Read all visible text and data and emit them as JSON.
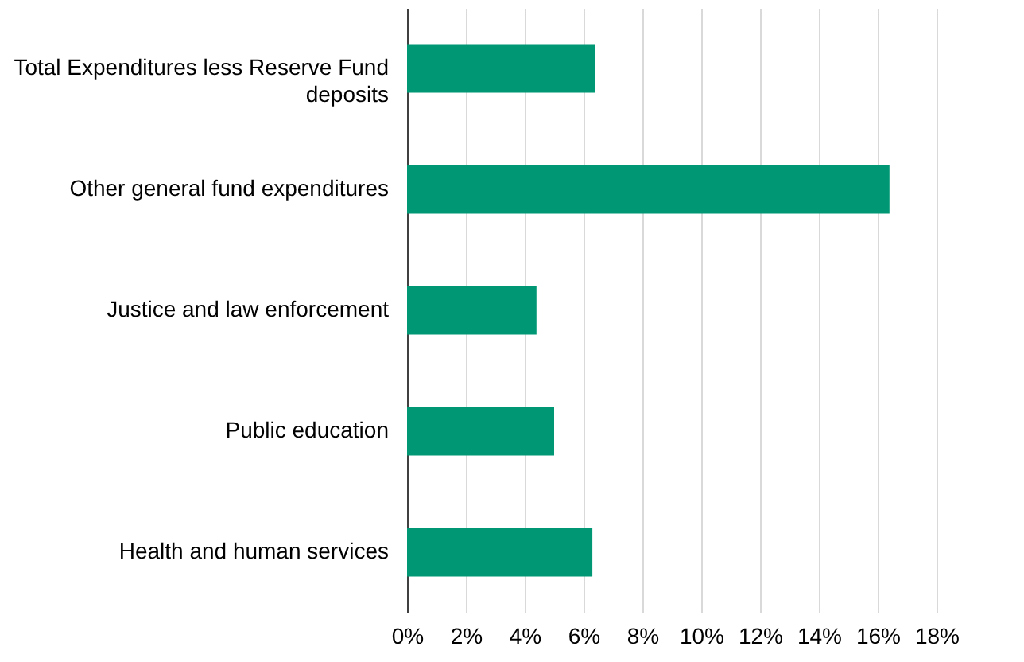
{
  "chart_data": {
    "type": "bar",
    "orientation": "horizontal",
    "categories": [
      "Total Expenditures less Reserve Fund deposits",
      "Other general fund expenditures",
      "Justice and law enforcement",
      "Public education",
      "Health and human services"
    ],
    "values": [
      6.4,
      16.4,
      4.4,
      5.0,
      6.3
    ],
    "color": "#009874",
    "xlim": [
      0,
      18
    ],
    "xticks": [
      {
        "value": 0,
        "label": "0%"
      },
      {
        "value": 2,
        "label": "2%"
      },
      {
        "value": 4,
        "label": "4%"
      },
      {
        "value": 6,
        "label": "6%"
      },
      {
        "value": 8,
        "label": "8%"
      },
      {
        "value": 10,
        "label": "10%"
      },
      {
        "value": 12,
        "label": "12%"
      },
      {
        "value": 14,
        "label": "14%"
      },
      {
        "value": 16,
        "label": "16%"
      },
      {
        "value": 18,
        "label": "18%"
      }
    ],
    "grid": "x"
  }
}
